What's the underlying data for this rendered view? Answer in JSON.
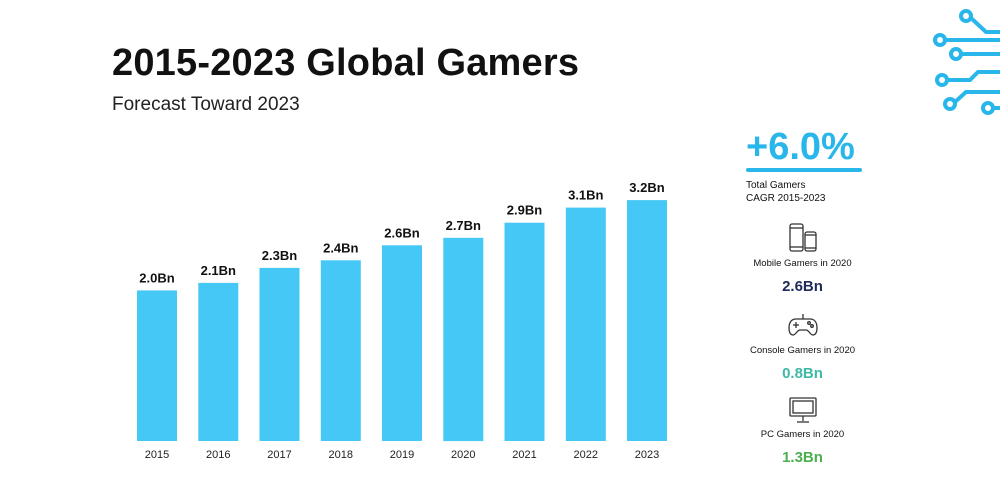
{
  "header": {
    "title": "2015-2023 Global Gamers",
    "subtitle": "Forecast Toward 2023"
  },
  "chart_data": {
    "type": "bar",
    "title": "2015-2023 Global Gamers",
    "subtitle": "Forecast Toward 2023",
    "categories": [
      "2015",
      "2016",
      "2017",
      "2018",
      "2019",
      "2020",
      "2021",
      "2022",
      "2023"
    ],
    "values": [
      2.0,
      2.1,
      2.3,
      2.4,
      2.6,
      2.7,
      2.9,
      3.1,
      3.2
    ],
    "data_labels": [
      "2.0Bn",
      "2.1Bn",
      "2.3Bn",
      "2.4Bn",
      "2.6Bn",
      "2.7Bn",
      "2.9Bn",
      "3.1Bn",
      "3.2Bn"
    ],
    "unit": "Bn",
    "xlabel": "",
    "ylabel": "",
    "ylim": [
      0,
      3.6
    ],
    "grid": false,
    "bar_color": "#45c8f5"
  },
  "sidebar": {
    "cagr": {
      "value": "+6.0%",
      "caption": "Total Gamers CAGR 2015-2023",
      "color": "#29b6ea"
    },
    "stats": [
      {
        "icon": "mobile-phones-icon",
        "label": "Mobile Gamers in 2020",
        "value": "2.6Bn",
        "color": "#1f2a5a"
      },
      {
        "icon": "gamepad-icon",
        "label": "Console Gamers in 2020",
        "value": "0.8Bn",
        "color": "#3fb8a6"
      },
      {
        "icon": "monitor-icon",
        "label": "PC Gamers in 2020",
        "value": "1.3Bn",
        "color": "#4caf50"
      }
    ]
  },
  "decoration": {
    "icon": "circuit-icon",
    "color": "#29b6ea"
  }
}
